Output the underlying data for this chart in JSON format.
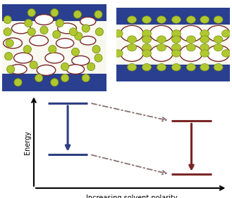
{
  "fig_width": 3.29,
  "fig_height": 2.82,
  "dpi": 100,
  "blue_bar_color": "#2a3f8f",
  "box_bg_color": "#f8f8f0",
  "blue_energy_color": "#2c4080",
  "red_energy_color": "#7a2525",
  "dash_color": "#8a7070",
  "ylabel": "Energy",
  "xlabel": "Increasing solvent polarity",
  "ylabel_fontsize": 7,
  "xlabel_fontsize": 7
}
